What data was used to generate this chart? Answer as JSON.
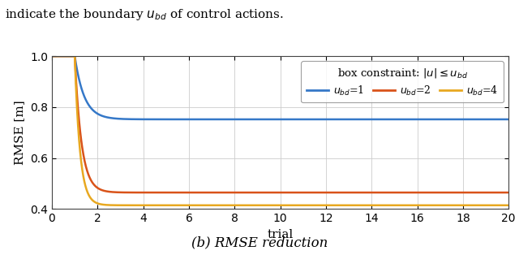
{
  "header_text": "indicate the boundary $u_{bd}$ of control actions.",
  "caption_text": "(b) RMSE reduction",
  "xlabel": "trial",
  "ylabel": "RMSE [m]",
  "xlim": [
    0,
    20
  ],
  "ylim": [
    0.4,
    1.0
  ],
  "yticks": [
    0.4,
    0.6,
    0.8,
    1.0
  ],
  "xticks": [
    0,
    2,
    4,
    6,
    8,
    10,
    12,
    14,
    16,
    18,
    20
  ],
  "legend_title": "box constraint: $|u| \\leq u_{bd}$",
  "lines": [
    {
      "label": "$u_{bd}$=1",
      "color": "#3578c8",
      "start": 1.0,
      "end": 0.752,
      "decay1": 2.5,
      "decay2": 0.08
    },
    {
      "label": "$u_{bd}$=2",
      "color": "#d95319",
      "start": 1.0,
      "end": 0.465,
      "decay1": 3.5,
      "decay2": 0.12
    },
    {
      "label": "$u_{bd}$=4",
      "color": "#e8a820",
      "start": 1.0,
      "end": 0.415,
      "decay1": 4.5,
      "decay2": 0.15
    }
  ],
  "background_color": "#ffffff",
  "grid_color": "#cccccc"
}
